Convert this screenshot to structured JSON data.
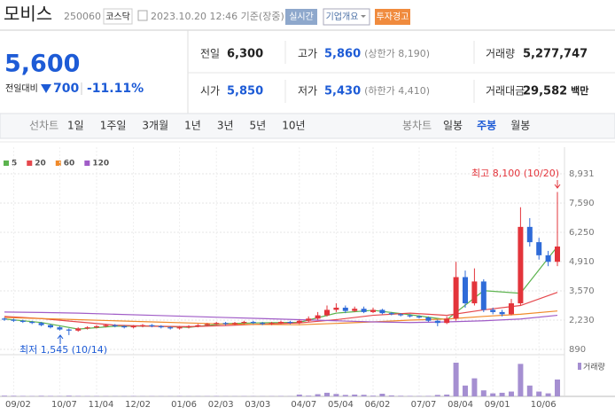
{
  "header": {
    "name": "모비스",
    "code": "250060",
    "market": "코스닥",
    "timestamp": "2023.10.20 12:46 기준(장중)",
    "buttons": [
      "실시간",
      "기업개요",
      "투자경고"
    ]
  },
  "price": {
    "current": "5,600",
    "change_label": "전일대비",
    "change": "700",
    "change_rate": "-11.11%"
  },
  "summary": {
    "rows": [
      [
        {
          "label": "전일",
          "value": "6,300"
        },
        {
          "label": "고가",
          "value": "5,860",
          "note": "(상한가 8,190)"
        },
        {
          "label": "거래량",
          "value": "5,277,747"
        }
      ],
      [
        {
          "label": "시가",
          "value": "5,850"
        },
        {
          "label": "저가",
          "value": "5,430",
          "note": "(하한가 4,410)"
        },
        {
          "label": "거래대금",
          "value": "29,582",
          "unit": "백만"
        }
      ]
    ]
  },
  "toolbar": {
    "line_label": "선차트",
    "line_periods": [
      "1일",
      "1주일",
      "3개월",
      "1년",
      "3년",
      "5년",
      "10년"
    ],
    "candle_label": "봉차트",
    "candle_periods": [
      "일봉",
      "주봉",
      "월봉"
    ],
    "candle_selected": 1
  },
  "chart_data": {
    "type": "candlestick",
    "categories": [
      null,
      "09/02",
      null,
      null,
      null,
      null,
      "10/07",
      null,
      null,
      null,
      "11/04",
      null,
      null,
      null,
      "12/02",
      null,
      null,
      null,
      null,
      "01/06",
      null,
      null,
      null,
      "02/03",
      null,
      null,
      null,
      "03/03",
      null,
      null,
      null,
      null,
      "04/07",
      null,
      null,
      null,
      "05/04",
      null,
      null,
      null,
      "06/02",
      null,
      null,
      null,
      null,
      "07/07",
      null,
      null,
      null,
      "08/04",
      null,
      null,
      null,
      "09/01",
      null,
      null,
      null,
      null,
      "10/06",
      null,
      null
    ],
    "open": [
      2300,
      2250,
      2200,
      2150,
      2100,
      2000,
      1900,
      1800,
      1750,
      1850,
      1900,
      1950,
      2000,
      1950,
      1900,
      1950,
      2000,
      1950,
      1900,
      1850,
      1900,
      1950,
      2000,
      2050,
      2100,
      2050,
      2100,
      2150,
      2100,
      2050,
      2100,
      2150,
      2100,
      2200,
      2300,
      2450,
      2700,
      2800,
      2650,
      2750,
      2600,
      2700,
      2550,
      2500,
      2450,
      2400,
      2350,
      2200,
      2100,
      2300,
      4200,
      3000,
      4000,
      2700,
      2600,
      2500,
      3000,
      6500,
      5800,
      5200,
      4900
    ],
    "high": [
      2350,
      2300,
      2250,
      2200,
      2150,
      2050,
      1950,
      1850,
      1900,
      1950,
      2000,
      2050,
      2050,
      2000,
      2000,
      2050,
      2050,
      2000,
      1950,
      1950,
      2000,
      2050,
      2100,
      2150,
      2150,
      2150,
      2200,
      2200,
      2150,
      2150,
      2200,
      2200,
      2250,
      2400,
      2600,
      2900,
      3000,
      2900,
      2850,
      2850,
      2800,
      2750,
      2600,
      2550,
      2500,
      2450,
      2400,
      2250,
      2400,
      4900,
      4500,
      4600,
      4100,
      2800,
      2700,
      3200,
      7400,
      6900,
      6000,
      5400,
      8100
    ],
    "low": [
      2200,
      2150,
      2100,
      2050,
      1950,
      1850,
      1750,
      1545,
      1700,
      1800,
      1850,
      1900,
      1900,
      1850,
      1850,
      1900,
      1900,
      1850,
      1800,
      1800,
      1850,
      1900,
      1950,
      2000,
      2000,
      2000,
      2050,
      2050,
      2000,
      2000,
      2050,
      2050,
      2050,
      2150,
      2250,
      2400,
      2600,
      2550,
      2600,
      2550,
      2550,
      2500,
      2450,
      2400,
      2350,
      2300,
      2150,
      1950,
      2050,
      2200,
      2800,
      2900,
      2600,
      2500,
      2400,
      2450,
      2900,
      5600,
      5000,
      4700,
      4700
    ],
    "close": [
      2250,
      2200,
      2150,
      2100,
      2000,
      1900,
      1800,
      1750,
      1850,
      1900,
      1950,
      2000,
      1950,
      1900,
      1950,
      2000,
      1950,
      1900,
      1850,
      1900,
      1950,
      2000,
      2050,
      2100,
      2050,
      2100,
      2150,
      2100,
      2050,
      2100,
      2150,
      2100,
      2200,
      2300,
      2450,
      2700,
      2800,
      2650,
      2750,
      2600,
      2700,
      2550,
      2500,
      2450,
      2400,
      2350,
      2200,
      2100,
      2300,
      4200,
      3000,
      4000,
      2700,
      2600,
      2500,
      3000,
      6500,
      5800,
      5200,
      4900,
      5600
    ],
    "volume": [
      600000,
      500000,
      400000,
      300000,
      500000,
      400000,
      300000,
      600000,
      400000,
      300000,
      300000,
      250000,
      200000,
      200000,
      300000,
      200000,
      250000,
      200000,
      200000,
      300000,
      200000,
      200000,
      250000,
      300000,
      200000,
      200000,
      250000,
      200000,
      200000,
      250000,
      300000,
      200000,
      1500000,
      600000,
      1800000,
      3000000,
      2000000,
      1200000,
      1500000,
      1300000,
      600000,
      2200000,
      800000,
      500000,
      400000,
      300000,
      400000,
      1200000,
      1500000,
      28000000,
      9000000,
      15000000,
      5000000,
      2500000,
      3000000,
      4000000,
      27000000,
      9000000,
      4000000,
      2500000,
      14000000
    ],
    "volume_label": "거래량",
    "volume_color": "#a58fd1",
    "up_color": "#e3343b",
    "down_color": "#2f6bd8",
    "ma": [
      {
        "name": "5",
        "color": "#5cb34e",
        "x": [
          0,
          4,
          8,
          12,
          16,
          20,
          24,
          28,
          32,
          36,
          40,
          44,
          48,
          52,
          56,
          60
        ],
        "values": [
          2280,
          2120,
          1820,
          1950,
          1960,
          1900,
          2070,
          2110,
          2130,
          2550,
          2680,
          2480,
          2250,
          3580,
          3460,
          5600
        ]
      },
      {
        "name": "20",
        "color": "#e5484d",
        "x": [
          0,
          4,
          8,
          12,
          16,
          20,
          24,
          28,
          32,
          36,
          40,
          44,
          48,
          52,
          56,
          60
        ],
        "values": [
          2400,
          2300,
          2150,
          2000,
          1950,
          1930,
          1980,
          2050,
          2100,
          2250,
          2450,
          2550,
          2450,
          2700,
          2900,
          3500
        ]
      },
      {
        "name": "60",
        "color": "#f08a2a",
        "x": [
          0,
          4,
          8,
          12,
          16,
          20,
          24,
          28,
          32,
          36,
          40,
          44,
          48,
          52,
          56,
          60
        ],
        "values": [
          2350,
          2300,
          2250,
          2200,
          2150,
          2100,
          2050,
          2030,
          2020,
          2080,
          2150,
          2230,
          2280,
          2400,
          2500,
          2650
        ]
      },
      {
        "name": "120",
        "color": "#a05cc7",
        "x": [
          0,
          4,
          8,
          12,
          16,
          20,
          24,
          28,
          32,
          36,
          40,
          44,
          48,
          52,
          56,
          60
        ],
        "values": [
          2600,
          2580,
          2550,
          2500,
          2450,
          2400,
          2350,
          2300,
          2250,
          2200,
          2150,
          2120,
          2150,
          2200,
          2280,
          2450
        ]
      }
    ],
    "ylim": [
      890,
      8931
    ],
    "yticks": [
      {
        "value": 890,
        "label": "890"
      },
      {
        "value": 2230,
        "label": "2,230"
      },
      {
        "value": 3570,
        "label": "3,570"
      },
      {
        "value": 4910,
        "label": "4,910"
      },
      {
        "value": 6250,
        "label": "6,250"
      },
      {
        "value": 7590,
        "label": "7,590"
      },
      {
        "value": 8931,
        "label": "8,931"
      }
    ],
    "grid": true,
    "annotations": {
      "high": "최고 8,100 (10/20)",
      "low": "최저 1,545 (10/14)"
    }
  }
}
